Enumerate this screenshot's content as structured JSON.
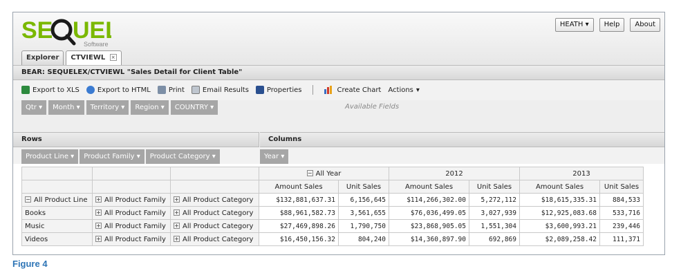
{
  "app": {
    "logo_text": "SEQUEL",
    "logo_sub": "Software"
  },
  "top_buttons": {
    "user": "HEATH",
    "help": "Help",
    "about": "About"
  },
  "tabs": [
    {
      "label": "Explorer"
    },
    {
      "label": "CTVIEWL"
    }
  ],
  "view_title": "BEAR: SEQUELEX/CTVIEWL \"Sales Detail for Client Table\"",
  "toolbar": {
    "export_xls": "Export to XLS",
    "export_html": "Export to HTML",
    "print": "Print",
    "email": "Email Results",
    "properties": "Properties",
    "create_chart": "Create Chart",
    "actions": "Actions"
  },
  "available_fields": {
    "label": "Available Fields",
    "chips": [
      "Qtr",
      "Month",
      "Territory",
      "Region",
      "COUNTRY"
    ]
  },
  "rows_label": "Rows",
  "columns_label": "Columns",
  "row_chips": [
    "Product Line",
    "Product Family",
    "Product Category"
  ],
  "column_chips": [
    "Year"
  ],
  "grid": {
    "year_headers": [
      "All Year",
      "2012",
      "2013"
    ],
    "measures": [
      "Amount Sales",
      "Unit Sales",
      "Amount Sales",
      "Unit Sales",
      "Amount Sales",
      "Unit Sales"
    ],
    "rows": [
      {
        "line": "All Product Line",
        "family": "All Product Family",
        "category": "All Product Category",
        "values": [
          "$132,881,637.31",
          "6,156,645",
          "$114,266,302.00",
          "5,272,112",
          "$18,615,335.31",
          "884,533"
        ]
      },
      {
        "line": "Books",
        "family": "All Product Family",
        "category": "All Product Category",
        "values": [
          "$88,961,582.73",
          "3,561,655",
          "$76,036,499.05",
          "3,027,939",
          "$12,925,083.68",
          "533,716"
        ]
      },
      {
        "line": "Music",
        "family": "All Product Family",
        "category": "All Product Category",
        "values": [
          "$27,469,898.26",
          "1,790,750",
          "$23,868,905.05",
          "1,551,304",
          "$3,600,993.21",
          "239,446"
        ]
      },
      {
        "line": "Videos",
        "family": "All Product Family",
        "category": "All Product Category",
        "values": [
          "$16,450,156.32",
          "804,240",
          "$14,360,897.90",
          "692,869",
          "$2,089,258.42",
          "111,371"
        ]
      }
    ]
  },
  "caption": "Figure 4",
  "colors": {
    "accent": "#2e75b6",
    "logo_green": "#7ab800",
    "chip_grey": "#a6a6a6"
  }
}
